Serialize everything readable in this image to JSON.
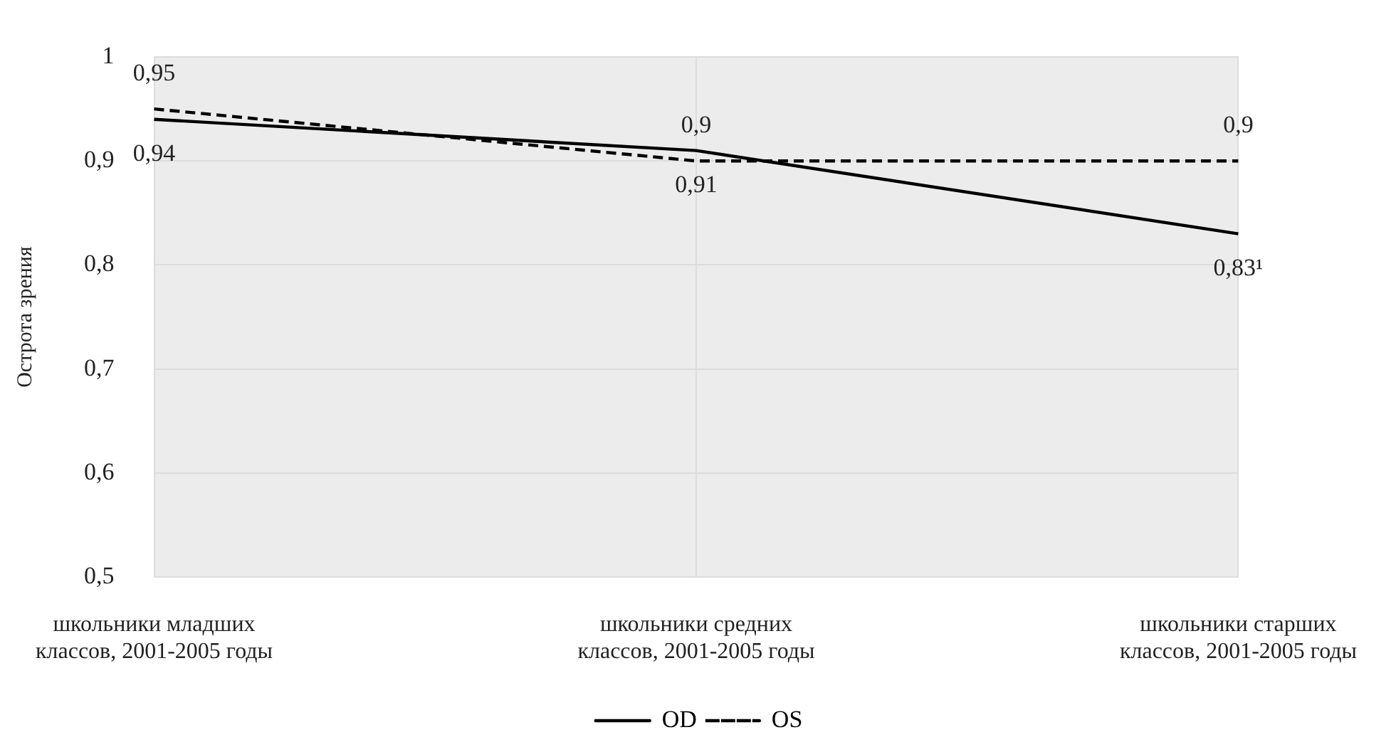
{
  "chart_data": {
    "type": "line",
    "ylabel": "Острота зрения",
    "categories": [
      "школьники младших классов, 2001-2005 годы",
      "школьники средних классов, 2001-2005 годы",
      "школьники старших классов, 2001-2005 годы"
    ],
    "series": [
      {
        "name": "OD",
        "color": "#000000",
        "line_style": "solid",
        "values": [
          0.94,
          0.91,
          0.83
        ],
        "value_labels": [
          "0,94",
          "0,91",
          "0,83¹"
        ]
      },
      {
        "name": "OS",
        "color": "#000000",
        "line_style": "dashed",
        "values": [
          0.95,
          0.9,
          0.9
        ],
        "value_labels": [
          "0,95",
          "0,9",
          "0,9"
        ]
      }
    ],
    "ylim": [
      0.5,
      1
    ],
    "yticks": [
      {
        "value": 0.5,
        "label": "0,5"
      },
      {
        "value": 0.6,
        "label": "0,6"
      },
      {
        "value": 0.7,
        "label": "0,7"
      },
      {
        "value": 0.8,
        "label": "0,8"
      },
      {
        "value": 0.9,
        "label": "0,9"
      },
      {
        "value": 1,
        "label": "1"
      }
    ],
    "grid": true,
    "legend": "bottom",
    "marker": "none"
  }
}
